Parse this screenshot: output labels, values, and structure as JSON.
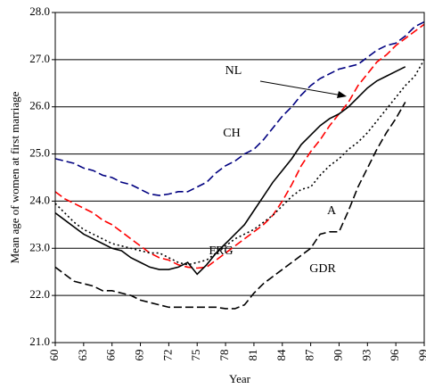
{
  "chart_data": {
    "type": "line",
    "xlabel": "Year",
    "ylabel": "Mean age of women at first marriage",
    "x": [
      60,
      61,
      62,
      63,
      64,
      65,
      66,
      67,
      68,
      69,
      70,
      71,
      72,
      73,
      74,
      75,
      76,
      77,
      78,
      79,
      80,
      81,
      82,
      83,
      84,
      85,
      86,
      87,
      88,
      89,
      90,
      91,
      92,
      93,
      94,
      95,
      96,
      97,
      98,
      99
    ],
    "xlim": [
      60,
      99
    ],
    "xticks": [
      60,
      63,
      66,
      69,
      72,
      75,
      78,
      81,
      84,
      87,
      90,
      93,
      96,
      99
    ],
    "ylim": [
      21,
      28
    ],
    "yticks": [
      {
        "value": 21,
        "label": "21.0"
      },
      {
        "value": 22,
        "label": "22.0"
      },
      {
        "value": 23,
        "label": "23.0"
      },
      {
        "value": 24,
        "label": "24.0"
      },
      {
        "value": 25,
        "label": "25.0"
      },
      {
        "value": 26,
        "label": "26.0"
      },
      {
        "value": 27,
        "label": "27.0"
      },
      {
        "value": 28,
        "label": "28.0"
      }
    ],
    "grid": true,
    "annotations": [
      "NL",
      "CH",
      "A",
      "FRG",
      "GDR"
    ],
    "series": [
      {
        "name": "CH",
        "color": "#000080",
        "dash": "dashed",
        "values": [
          24.9,
          24.85,
          24.8,
          24.7,
          24.65,
          24.55,
          24.5,
          24.4,
          24.35,
          24.25,
          24.15,
          24.12,
          24.15,
          24.2,
          24.2,
          24.3,
          24.4,
          24.6,
          24.75,
          24.85,
          25.0,
          25.1,
          25.3,
          25.55,
          25.8,
          26.0,
          26.25,
          26.45,
          26.6,
          26.7,
          26.8,
          26.85,
          26.9,
          27.05,
          27.2,
          27.3,
          27.35,
          27.5,
          27.7,
          27.8
        ]
      },
      {
        "name": "NL",
        "color": "#ff0000",
        "dash": "dashed",
        "values": [
          24.2,
          24.05,
          23.95,
          23.85,
          23.75,
          23.6,
          23.5,
          23.35,
          23.2,
          23.05,
          22.9,
          22.8,
          22.75,
          22.65,
          22.6,
          22.58,
          22.6,
          22.75,
          22.9,
          23.05,
          23.2,
          23.35,
          23.5,
          23.7,
          24.0,
          24.35,
          24.75,
          25.05,
          25.3,
          25.6,
          25.85,
          26.1,
          26.45,
          26.7,
          26.95,
          27.1,
          27.3,
          27.45,
          27.6,
          27.75
        ]
      },
      {
        "name": "FRG",
        "color": "#000000",
        "dash": "solid",
        "values": [
          23.75,
          23.6,
          23.45,
          23.3,
          23.2,
          23.1,
          23.0,
          22.95,
          22.8,
          22.7,
          22.6,
          22.55,
          22.55,
          22.6,
          22.7,
          22.45,
          22.65,
          22.9,
          23.1,
          23.3,
          23.5,
          23.8,
          24.1,
          24.4,
          24.65,
          24.9,
          25.2,
          25.4,
          25.6,
          25.75,
          25.85,
          26.0,
          26.2,
          26.4,
          26.55,
          26.65,
          26.75,
          26.85,
          null,
          null
        ]
      },
      {
        "name": "A",
        "color": "#000000",
        "dash": "dotted",
        "values": [
          23.95,
          23.75,
          23.55,
          23.4,
          23.3,
          23.2,
          23.1,
          23.05,
          23.0,
          22.95,
          22.9,
          22.9,
          22.8,
          22.7,
          22.65,
          22.7,
          22.75,
          22.9,
          23.05,
          23.2,
          23.3,
          23.4,
          23.55,
          23.7,
          23.9,
          24.1,
          24.25,
          24.3,
          24.55,
          24.75,
          24.9,
          25.1,
          25.25,
          25.45,
          25.7,
          25.95,
          26.2,
          26.45,
          26.65,
          27.0
        ]
      },
      {
        "name": "GDR",
        "color": "#000000",
        "dash": "dashed",
        "values": [
          22.6,
          22.45,
          22.3,
          22.25,
          22.2,
          22.1,
          22.1,
          22.05,
          22.0,
          21.9,
          21.85,
          21.8,
          21.75,
          21.75,
          21.75,
          21.75,
          21.75,
          21.75,
          21.72,
          21.72,
          21.8,
          22.05,
          22.25,
          22.4,
          22.55,
          22.7,
          22.85,
          23.0,
          23.3,
          23.35,
          23.35,
          23.8,
          24.3,
          24.7,
          25.1,
          25.45,
          25.75,
          26.1,
          null,
          null
        ]
      }
    ]
  }
}
